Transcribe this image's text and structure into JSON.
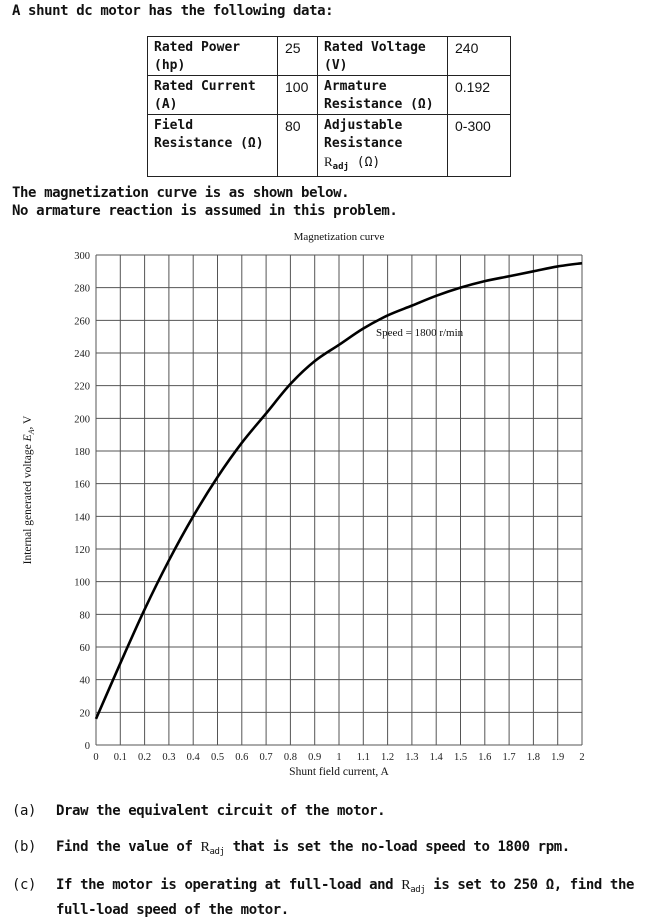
{
  "intro": "A shunt dc motor has the following data:",
  "table": {
    "rows": [
      {
        "label1": "Rated Power (hp)",
        "value1": "25",
        "label2": "Rated Voltage (V)",
        "value2": "240"
      },
      {
        "label1": "Rated Current (A)",
        "value1": "100",
        "label2": "Armature Resistance (Ω)",
        "value2": "0.192"
      },
      {
        "label1": "Field Resistance (Ω)",
        "value1": "80",
        "label2": "Adjustable Resistance",
        "label2_sym": "R",
        "label2_sub": "adj",
        "label2_unit": "(Ω)",
        "value2": "0-300"
      }
    ]
  },
  "notes": {
    "line1": "The magnetization curve is as shown below.",
    "line2": "No armature reaction is assumed in this problem."
  },
  "chart_data": {
    "type": "line",
    "title": "Magnetization curve",
    "xlabel": "Shunt field current, A",
    "ylabel": "Internal generated voltage E_A, V",
    "xlim": [
      0,
      2
    ],
    "ylim": [
      0,
      300
    ],
    "xticks": [
      "0",
      "0.1",
      "0.2",
      "0.3",
      "0.4",
      "0.5",
      "0.6",
      "0.7",
      "0.8",
      "0.9",
      "1",
      "1.1",
      "1.2",
      "1.3",
      "1.4",
      "1.5",
      "1.6",
      "1.7",
      "1.8",
      "1.9",
      "2"
    ],
    "yticks": [
      "0",
      "20",
      "40",
      "60",
      "80",
      "100",
      "120",
      "140",
      "160",
      "180",
      "200",
      "220",
      "240",
      "260",
      "280",
      "300"
    ],
    "grid": true,
    "annotation": "Speed = 1800 r/min",
    "series": [
      {
        "name": "Speed = 1800 r/min",
        "x": [
          0,
          0.1,
          0.2,
          0.3,
          0.4,
          0.5,
          0.6,
          0.7,
          0.8,
          0.9,
          1.0,
          1.1,
          1.2,
          1.3,
          1.4,
          1.5,
          1.6,
          1.7,
          1.8,
          1.9,
          2.0
        ],
        "y": [
          16,
          50,
          83,
          113,
          140,
          164,
          185,
          203,
          221,
          235,
          245,
          255,
          263,
          269,
          275,
          280,
          284,
          287,
          290,
          293,
          295
        ]
      }
    ]
  },
  "questions": [
    {
      "tag": "(a)",
      "text": "Draw the equivalent circuit of the motor."
    },
    {
      "tag": "(b)",
      "pre": "Find the value of ",
      "sym": "R",
      "sub": "adj",
      "post": " that is set the no-load speed to 1800 rpm."
    },
    {
      "tag": "(c)",
      "pre": "If the motor is operating at full-load and ",
      "sym": "R",
      "sub": "adj",
      "post": "  is set to 250 Ω, find the full-load speed of the motor."
    }
  ]
}
